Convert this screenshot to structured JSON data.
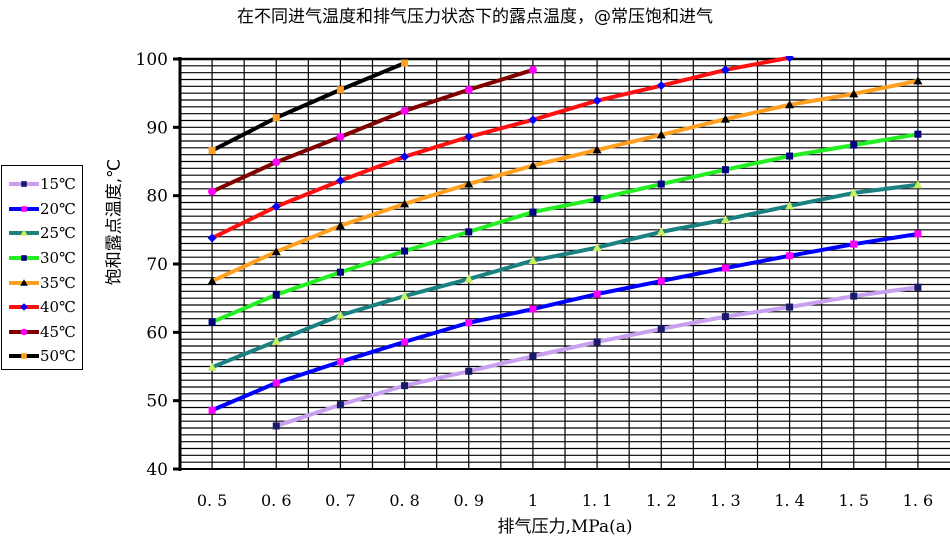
{
  "chart_data": {
    "type": "line",
    "title": "在不同进气温度和排气压力状态下的露点温度，@常压饱和进气",
    "xlabel": "排气压力,MPa(a)",
    "ylabel": "饱和露点温度,℃",
    "xlim": [
      0.45,
      1.65
    ],
    "ylim": [
      40,
      100
    ],
    "x_ticks": [
      0.5,
      0.6,
      0.7,
      0.8,
      0.9,
      1,
      1.1,
      1.2,
      1.3,
      1.4,
      1.5,
      1.6
    ],
    "x_tick_labels": [
      "0. 5",
      "0. 6",
      "0. 7",
      "0. 8",
      "0. 9",
      "1",
      "1. 1",
      "1. 2",
      "1. 3",
      "1. 4",
      "1. 5",
      "1. 6"
    ],
    "y_ticks": [
      40,
      50,
      60,
      70,
      80,
      90,
      100
    ],
    "y_tick_labels": [
      "40",
      "50",
      "60",
      "70",
      "80",
      "90",
      "100"
    ],
    "grid": {
      "major_y": 10,
      "minor_y": 1,
      "minor_x": 0.05,
      "on": true
    },
    "legend_placement": "left",
    "series": [
      {
        "name": "15℃",
        "color": "#c8a0f0",
        "marker": "square",
        "marker_color": "#1a1a6a",
        "x": [
          0.6,
          0.7,
          0.8,
          0.9,
          1.0,
          1.1,
          1.2,
          1.3,
          1.4,
          1.5,
          1.6
        ],
        "values": [
          46.3,
          49.4,
          52.2,
          54.3,
          56.5,
          58.6,
          60.5,
          62.3,
          63.7,
          65.3,
          66.6
        ]
      },
      {
        "name": "20℃",
        "color": "#0000ff",
        "marker": "square",
        "marker_color": "#ff00ff",
        "x": [
          0.5,
          0.6,
          0.7,
          0.8,
          0.9,
          1.0,
          1.1,
          1.2,
          1.3,
          1.4,
          1.5,
          1.6
        ],
        "values": [
          48.6,
          52.6,
          55.7,
          58.6,
          61.4,
          63.4,
          65.6,
          67.5,
          69.4,
          71.2,
          72.9,
          74.4
        ]
      },
      {
        "name": "25℃",
        "color": "#1a8080",
        "marker": "triangle",
        "marker_color": "#c8f060",
        "x": [
          0.5,
          0.6,
          0.7,
          0.8,
          0.9,
          1.0,
          1.1,
          1.2,
          1.3,
          1.4,
          1.5,
          1.6
        ],
        "values": [
          54.9,
          58.7,
          62.5,
          65.3,
          67.8,
          70.5,
          72.4,
          74.7,
          76.5,
          78.5,
          80.4,
          81.6
        ]
      },
      {
        "name": "30℃",
        "color": "#22ee22",
        "marker": "square",
        "marker_color": "#000080",
        "x": [
          0.5,
          0.6,
          0.7,
          0.8,
          0.9,
          1.0,
          1.1,
          1.2,
          1.3,
          1.4,
          1.5,
          1.6
        ],
        "values": [
          61.5,
          65.5,
          68.8,
          71.9,
          74.7,
          77.6,
          79.5,
          81.7,
          83.8,
          85.8,
          87.4,
          89.0
        ]
      },
      {
        "name": "35℃",
        "color": "#ffa020",
        "marker": "triangle",
        "marker_color": "#000000",
        "x": [
          0.5,
          0.6,
          0.7,
          0.8,
          0.9,
          1.0,
          1.1,
          1.2,
          1.3,
          1.4,
          1.5,
          1.6
        ],
        "values": [
          67.5,
          71.8,
          75.6,
          78.8,
          81.7,
          84.4,
          86.7,
          88.9,
          91.2,
          93.3,
          94.9,
          96.8
        ]
      },
      {
        "name": "40℃",
        "color": "#ff1010",
        "marker": "diamond",
        "marker_color": "#0000ff",
        "x": [
          0.5,
          0.6,
          0.7,
          0.8,
          0.9,
          1.0,
          1.1,
          1.2,
          1.3,
          1.4
        ],
        "values": [
          73.8,
          78.4,
          82.2,
          85.7,
          88.6,
          91.1,
          93.9,
          96.1,
          98.4,
          100.2
        ]
      },
      {
        "name": "45℃",
        "color": "#800000",
        "marker": "circle",
        "marker_color": "#ff00ff",
        "x": [
          0.5,
          0.6,
          0.7,
          0.8,
          0.9,
          1.0
        ],
        "values": [
          80.6,
          84.9,
          88.6,
          92.4,
          95.5,
          98.4
        ]
      },
      {
        "name": "50℃",
        "color": "#000000",
        "marker": "square",
        "marker_color": "#ffa020",
        "x": [
          0.5,
          0.6,
          0.7,
          0.8
        ],
        "values": [
          86.6,
          91.4,
          95.5,
          99.4
        ]
      }
    ]
  }
}
